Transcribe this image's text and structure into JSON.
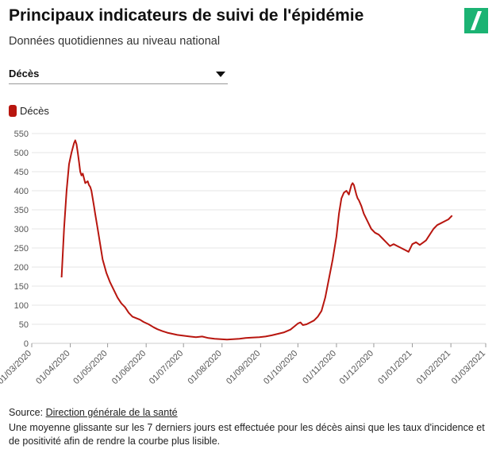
{
  "header": {
    "title": "Principaux indicateurs de suivi de l'épidémie",
    "subtitle": "Données quotidiennes au niveau national"
  },
  "logo": {
    "icon": "huffpost-slash-logo",
    "color": "#1bb373"
  },
  "indicator_select": {
    "value": "Décès"
  },
  "colors": {
    "series": "#b8160f",
    "grid": "#e6e6e6",
    "axis_text": "#555555"
  },
  "chart_data": {
    "type": "line",
    "title": "",
    "xlabel": "",
    "ylabel": "",
    "ylim": [
      0,
      550
    ],
    "yticks": [
      0,
      50,
      100,
      150,
      200,
      250,
      300,
      350,
      400,
      450,
      500,
      550
    ],
    "xlim": [
      "2020-03-01",
      "2021-03-01"
    ],
    "xticks": [
      "2020-03-01",
      "2020-04-01",
      "2020-05-01",
      "2020-06-01",
      "2020-07-01",
      "2020-08-01",
      "2020-09-01",
      "2020-10-01",
      "2020-11-01",
      "2020-12-01",
      "2021-01-01",
      "2021-02-01",
      "2021-03-01"
    ],
    "xtick_labels": [
      "01/03/2020",
      "01/04/2020",
      "01/05/2020",
      "01/06/2020",
      "01/07/2020",
      "01/08/2020",
      "01/09/2020",
      "01/10/2020",
      "01/11/2020",
      "01/12/2020",
      "01/01/2021",
      "01/02/2021",
      "01/03/2021"
    ],
    "grid": true,
    "legend_position": "top-left",
    "series": [
      {
        "name": "Décès",
        "color": "#b8160f",
        "x": [
          "2020-03-25",
          "2020-03-27",
          "2020-03-29",
          "2020-03-31",
          "2020-04-02",
          "2020-04-04",
          "2020-04-05",
          "2020-04-06",
          "2020-04-07",
          "2020-04-08",
          "2020-04-09",
          "2020-04-10",
          "2020-04-11",
          "2020-04-13",
          "2020-04-15",
          "2020-04-16",
          "2020-04-17",
          "2020-04-18",
          "2020-04-19",
          "2020-04-20",
          "2020-04-21",
          "2020-04-23",
          "2020-04-25",
          "2020-04-27",
          "2020-04-30",
          "2020-05-03",
          "2020-05-06",
          "2020-05-09",
          "2020-05-12",
          "2020-05-15",
          "2020-05-18",
          "2020-05-21",
          "2020-05-24",
          "2020-05-27",
          "2020-05-30",
          "2020-06-03",
          "2020-06-07",
          "2020-06-10",
          "2020-06-14",
          "2020-06-18",
          "2020-06-22",
          "2020-06-26",
          "2020-07-01",
          "2020-07-06",
          "2020-07-11",
          "2020-07-16",
          "2020-07-21",
          "2020-07-26",
          "2020-07-31",
          "2020-08-05",
          "2020-08-10",
          "2020-08-15",
          "2020-08-20",
          "2020-08-25",
          "2020-08-31",
          "2020-09-05",
          "2020-09-10",
          "2020-09-15",
          "2020-09-20",
          "2020-09-25",
          "2020-09-28",
          "2020-10-01",
          "2020-10-03",
          "2020-10-05",
          "2020-10-08",
          "2020-10-11",
          "2020-10-14",
          "2020-10-17",
          "2020-10-20",
          "2020-10-23",
          "2020-10-26",
          "2020-10-29",
          "2020-11-01",
          "2020-11-03",
          "2020-11-05",
          "2020-11-07",
          "2020-11-09",
          "2020-11-11",
          "2020-11-13",
          "2020-11-14",
          "2020-11-15",
          "2020-11-17",
          "2020-11-18",
          "2020-11-19",
          "2020-11-21",
          "2020-11-23",
          "2020-11-26",
          "2020-11-29",
          "2020-12-02",
          "2020-12-05",
          "2020-12-08",
          "2020-12-11",
          "2020-12-14",
          "2020-12-17",
          "2020-12-20",
          "2020-12-23",
          "2020-12-26",
          "2020-12-29",
          "2021-01-01",
          "2021-01-04",
          "2021-01-07",
          "2021-01-10",
          "2021-01-12",
          "2021-01-15",
          "2021-01-18",
          "2021-01-21",
          "2021-01-24",
          "2021-01-27",
          "2021-01-30",
          "2021-02-02"
        ],
        "y": [
          173,
          300,
          400,
          470,
          500,
          525,
          532,
          522,
          500,
          475,
          450,
          440,
          445,
          420,
          425,
          415,
          410,
          400,
          380,
          360,
          340,
          300,
          260,
          220,
          185,
          160,
          140,
          120,
          105,
          95,
          80,
          70,
          66,
          62,
          56,
          50,
          42,
          37,
          32,
          28,
          25,
          22,
          20,
          18,
          16,
          18,
          14,
          12,
          11,
          10,
          11,
          12,
          14,
          15,
          16,
          18,
          21,
          25,
          29,
          36,
          44,
          52,
          55,
          48,
          50,
          55,
          60,
          70,
          85,
          120,
          170,
          220,
          280,
          340,
          380,
          395,
          400,
          390,
          415,
          420,
          415,
          390,
          380,
          375,
          360,
          340,
          320,
          300,
          290,
          285,
          275,
          265,
          255,
          260,
          255,
          250,
          245,
          240,
          260,
          265,
          258,
          265,
          270,
          285,
          300,
          310,
          315,
          320,
          325,
          335
        ]
      }
    ]
  },
  "footer": {
    "source_prefix": "Source: ",
    "source_link": "Direction générale de la santé",
    "note": "Une moyenne glissante sur les 7 derniers jours est effectuée pour les décès ainsi que les taux d'incidence et de positivité afin de rendre la courbe plus lisible."
  }
}
